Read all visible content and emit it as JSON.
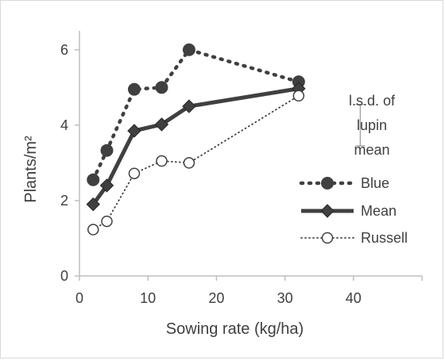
{
  "chart_data": {
    "type": "line",
    "xlabel": "Sowing rate (kg/ha)",
    "ylabel": "Plants/m²",
    "xlim": [
      0,
      50
    ],
    "ylim": [
      0,
      6.5
    ],
    "xticks": [
      "0",
      "10",
      "20",
      "30",
      "40"
    ],
    "yticks": [
      "0",
      "2",
      "4",
      "6"
    ],
    "grid": false,
    "legend_position": "right",
    "series": [
      {
        "name": "Blue",
        "style": "dotted-bold",
        "marker": "filled-circle",
        "color": "#404040",
        "x": [
          2,
          4,
          8,
          12,
          16,
          32
        ],
        "y": [
          2.55,
          3.33,
          4.95,
          5.0,
          6.0,
          5.15
        ]
      },
      {
        "name": "Mean",
        "style": "solid",
        "marker": "diamond",
        "color": "#404040",
        "x": [
          2,
          4,
          8,
          12,
          16,
          32
        ],
        "y": [
          1.9,
          2.4,
          3.85,
          4.02,
          4.5,
          4.97
        ]
      },
      {
        "name": "Russell",
        "style": "dotted",
        "marker": "open-circle",
        "color": "#404040",
        "x": [
          2,
          4,
          8,
          12,
          16,
          32
        ],
        "y": [
          1.23,
          1.45,
          2.72,
          3.05,
          3.0,
          4.78
        ]
      }
    ],
    "annotation": {
      "lines": [
        "l.s.d. of",
        "lupin",
        "mean"
      ],
      "error_bar_x": 41,
      "error_bar_low": 3.45,
      "error_bar_high": 4.55
    }
  }
}
